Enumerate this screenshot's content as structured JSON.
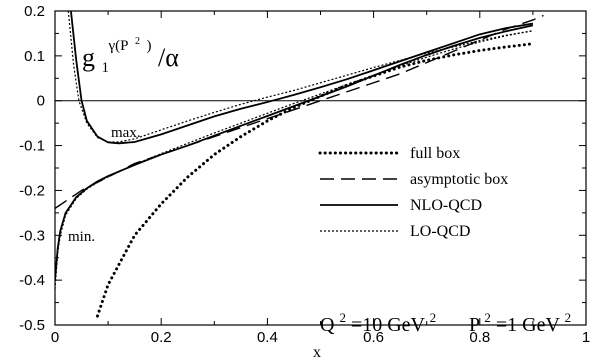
{
  "chart_data": {
    "type": "line",
    "title": "",
    "xlabel": "x",
    "ylabel": "",
    "xlim": [
      0,
      1
    ],
    "ylim": [
      -0.5,
      0.2
    ],
    "x_ticks": [
      "0",
      "0.2",
      "0.4",
      "0.6",
      "0.8",
      "1"
    ],
    "y_ticks": [
      "0.2",
      "0.1",
      "0",
      "-0.1",
      "-0.2",
      "-0.3",
      "-0.4",
      "-0.5"
    ],
    "grid": false,
    "legend_position": "right",
    "annotations": {
      "panel_label_main": "g",
      "panel_label_sub": "1",
      "panel_label_sup": "γ(P",
      "panel_label_sup_exp": "2",
      "panel_label_sup_close": ")",
      "panel_label_tail": "/α",
      "max_label": "max.",
      "min_label": "min.",
      "q2_prefix": "Q",
      "q2_exp": "2",
      "q2_value": "=10 GeV",
      "q2_unit_exp": "2",
      "p2_prefix": "P",
      "p2_exp": "2",
      "p2_value": "=1 GeV",
      "p2_unit_exp": "2"
    },
    "series": [
      {
        "name": "full box",
        "style": "dotted-thick",
        "color": "#000000",
        "x": [
          0.08,
          0.1,
          0.15,
          0.2,
          0.25,
          0.3,
          0.35,
          0.4,
          0.45,
          0.5,
          0.55,
          0.6,
          0.65,
          0.7,
          0.75,
          0.8,
          0.85,
          0.9
        ],
        "y": [
          -0.48,
          -0.41,
          -0.3,
          -0.23,
          -0.17,
          -0.12,
          -0.08,
          -0.045,
          -0.015,
          0.01,
          0.035,
          0.055,
          0.075,
          0.09,
          0.102,
          0.112,
          0.12,
          0.127
        ]
      },
      {
        "name": "asymptotic box",
        "style": "dashed",
        "color": "#000000",
        "x": [
          0.0,
          0.05,
          0.1,
          0.15,
          0.2,
          0.25,
          0.3,
          0.35,
          0.4,
          0.45,
          0.5,
          0.55,
          0.6,
          0.65,
          0.7,
          0.75,
          0.8,
          0.85,
          0.9,
          0.92
        ],
        "y": [
          -0.24,
          -0.2,
          -0.17,
          -0.14,
          -0.12,
          -0.1,
          -0.08,
          -0.06,
          -0.04,
          -0.02,
          0.0,
          0.02,
          0.04,
          0.06,
          0.085,
          0.11,
          0.135,
          0.16,
          0.18,
          0.19
        ]
      },
      {
        "name": "NLO-QCD (max.)",
        "style": "solid",
        "color": "#000000",
        "x": [
          0.03,
          0.04,
          0.05,
          0.06,
          0.08,
          0.1,
          0.12,
          0.15,
          0.2,
          0.25,
          0.3,
          0.35,
          0.4,
          0.45,
          0.5,
          0.55,
          0.6,
          0.65,
          0.7,
          0.75,
          0.8,
          0.85,
          0.9
        ],
        "y": [
          0.2,
          0.09,
          0.0,
          -0.045,
          -0.08,
          -0.093,
          -0.095,
          -0.092,
          -0.075,
          -0.055,
          -0.035,
          -0.018,
          -0.003,
          0.013,
          0.03,
          0.048,
          0.068,
          0.088,
          0.108,
          0.128,
          0.148,
          0.162,
          0.172
        ]
      },
      {
        "name": "NLO-QCD (min.)",
        "style": "solid",
        "color": "#000000",
        "x": [
          0.0,
          0.005,
          0.01,
          0.02,
          0.04,
          0.06,
          0.08,
          0.1,
          0.15,
          0.2,
          0.25,
          0.3,
          0.35,
          0.4,
          0.45,
          0.5,
          0.55,
          0.6,
          0.65,
          0.7,
          0.75,
          0.8,
          0.85,
          0.9
        ],
        "y": [
          -0.4,
          -0.33,
          -0.29,
          -0.25,
          -0.215,
          -0.195,
          -0.18,
          -0.168,
          -0.143,
          -0.12,
          -0.1,
          -0.078,
          -0.056,
          -0.034,
          -0.012,
          0.01,
          0.032,
          0.056,
          0.08,
          0.102,
          0.122,
          0.14,
          0.155,
          0.168
        ]
      },
      {
        "name": "LO-QCD (max.)",
        "style": "dotted-thin",
        "color": "#000000",
        "x": [
          0.025,
          0.035,
          0.045,
          0.06,
          0.08,
          0.1,
          0.12,
          0.15,
          0.2,
          0.25,
          0.3,
          0.35,
          0.4,
          0.45,
          0.5,
          0.55,
          0.6,
          0.65,
          0.7,
          0.75,
          0.8,
          0.85,
          0.9
        ],
        "y": [
          0.2,
          0.08,
          0.0,
          -0.05,
          -0.082,
          -0.092,
          -0.092,
          -0.085,
          -0.065,
          -0.045,
          -0.026,
          -0.008,
          0.008,
          0.023,
          0.04,
          0.057,
          0.074,
          0.09,
          0.106,
          0.12,
          0.134,
          0.146,
          0.156
        ]
      },
      {
        "name": "LO-QCD (min.)",
        "style": "dotted-thin",
        "color": "#000000",
        "x": [
          0.0,
          0.005,
          0.01,
          0.02,
          0.04,
          0.06,
          0.08,
          0.1,
          0.15,
          0.2,
          0.25,
          0.3,
          0.35,
          0.4,
          0.45,
          0.5,
          0.55,
          0.6,
          0.65,
          0.7,
          0.75,
          0.8,
          0.85,
          0.9
        ],
        "y": [
          -0.42,
          -0.34,
          -0.3,
          -0.255,
          -0.218,
          -0.197,
          -0.182,
          -0.17,
          -0.142,
          -0.118,
          -0.095,
          -0.072,
          -0.05,
          -0.028,
          -0.006,
          0.015,
          0.036,
          0.057,
          0.078,
          0.097,
          0.115,
          0.131,
          0.145,
          0.156
        ]
      }
    ],
    "legend": [
      {
        "label": "full box",
        "style": "dotted-thick"
      },
      {
        "label": "asymptotic box",
        "style": "dashed"
      },
      {
        "label": "NLO-QCD",
        "style": "solid"
      },
      {
        "label": "LO-QCD",
        "style": "dotted-thin"
      }
    ]
  }
}
